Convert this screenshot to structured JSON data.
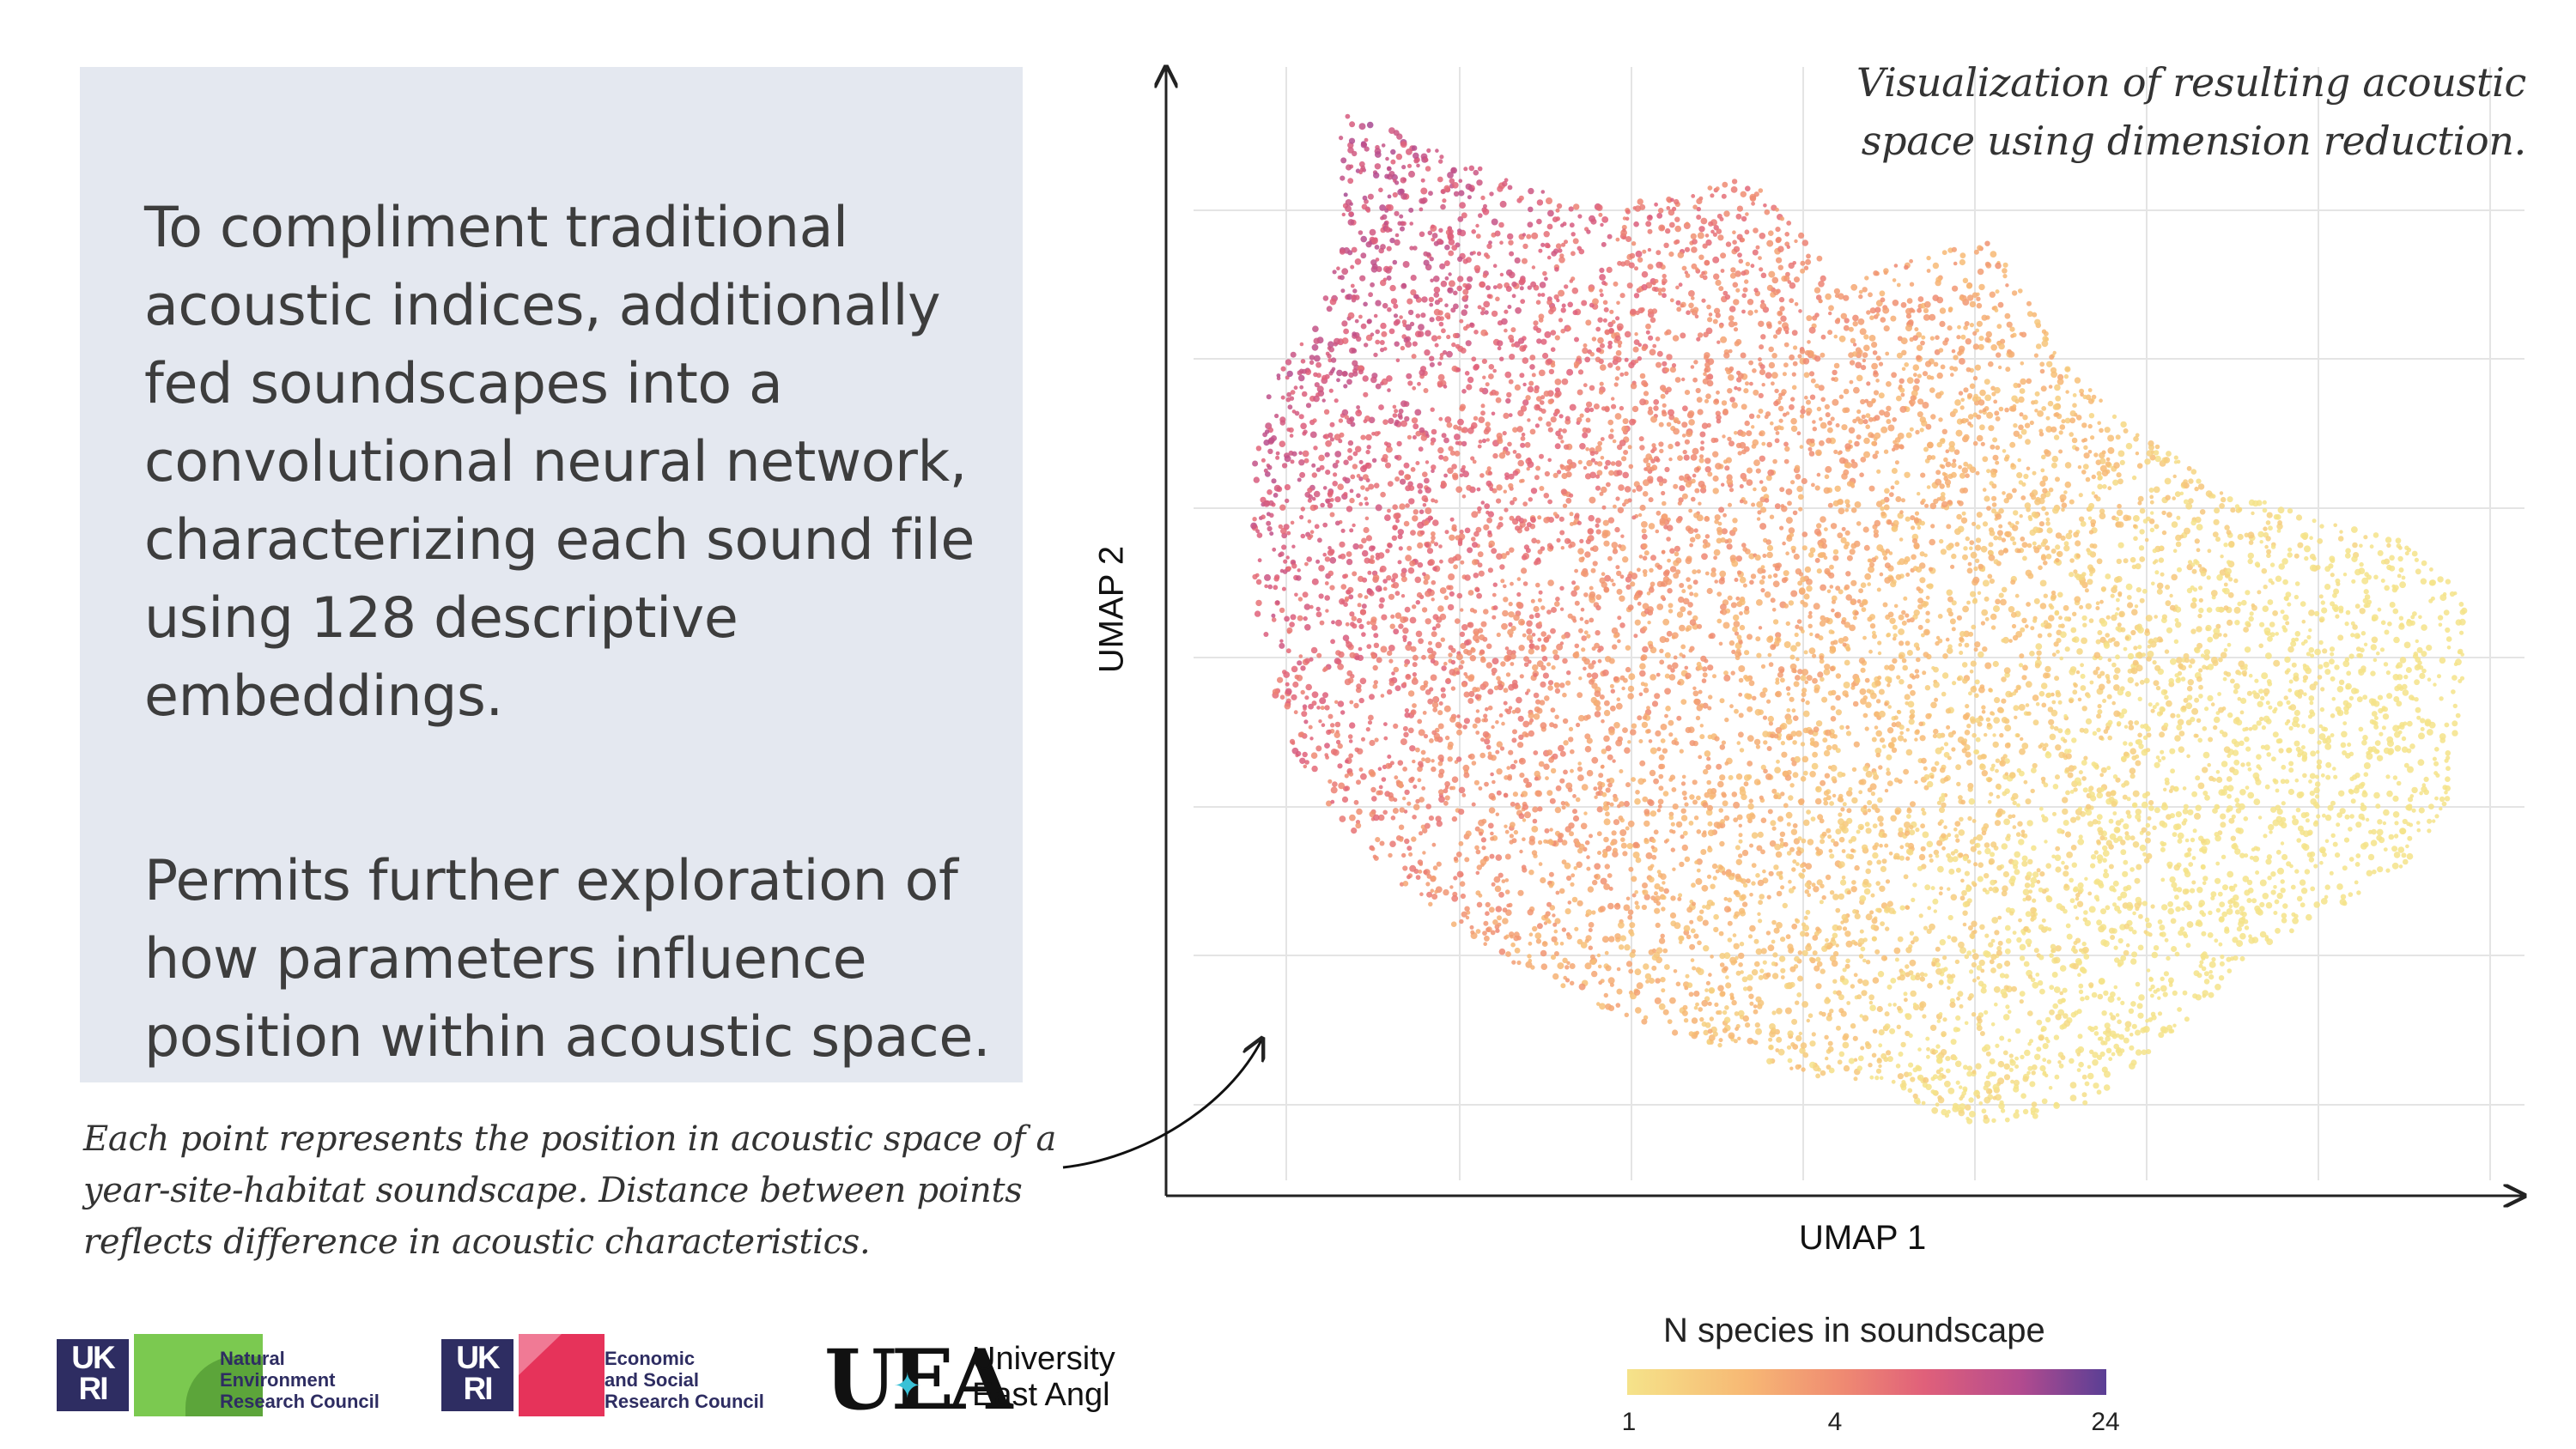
{
  "panel": {
    "paragraph1": [
      "To compliment traditional",
      "acoustic indices, additionally",
      "fed soundscapes into a",
      "convolutional neural network,",
      "characterizing each sound file",
      "using 128 descriptive",
      "embeddings."
    ],
    "paragraph2": [
      "Permits further exploration of",
      "how parameters influence",
      "position within acoustic space."
    ]
  },
  "caption": [
    "Each point represents the position in acoustic space of a",
    "year-site-habitat soundscape. Distance between points",
    "reflects difference in acoustic characteristics."
  ],
  "viz_title": [
    "Visualization of resulting acoustic",
    "space using dimension reduction."
  ],
  "chart_data": {
    "type": "scatter",
    "xlabel": "UMAP 1",
    "ylabel": "UMAP 2",
    "grid": true,
    "axis_ticks_labeled": false,
    "color_variable": "N species in soundscape",
    "color_scale": {
      "type": "log",
      "ticks": [
        1,
        4,
        24
      ],
      "palette": [
        "#f5e38a",
        "#f7b874",
        "#ef8a72",
        "#e0607a",
        "#b34b8f",
        "#5a3f95"
      ]
    },
    "legend": {
      "title": "N species in soundscape",
      "placement": "bottom"
    },
    "description_points": "dense cloud of many thousands of points; high species counts concentrated upper-left, low counts lower-right"
  },
  "logos": {
    "nerc": [
      "Natural",
      "Environment",
      "Research Council"
    ],
    "esrc": [
      "Economic",
      "and Social",
      "Research Council"
    ],
    "ukri_mark": [
      "UK",
      "RI"
    ],
    "uea_mark": "UEA",
    "uea_text": [
      "University",
      "East Angl"
    ]
  },
  "colors": {
    "panel_bg": "#e4e8f0",
    "ukri_navy": "#2e2d62",
    "nerc_green": "#7bc950",
    "esrc_red": "#e6335a"
  }
}
